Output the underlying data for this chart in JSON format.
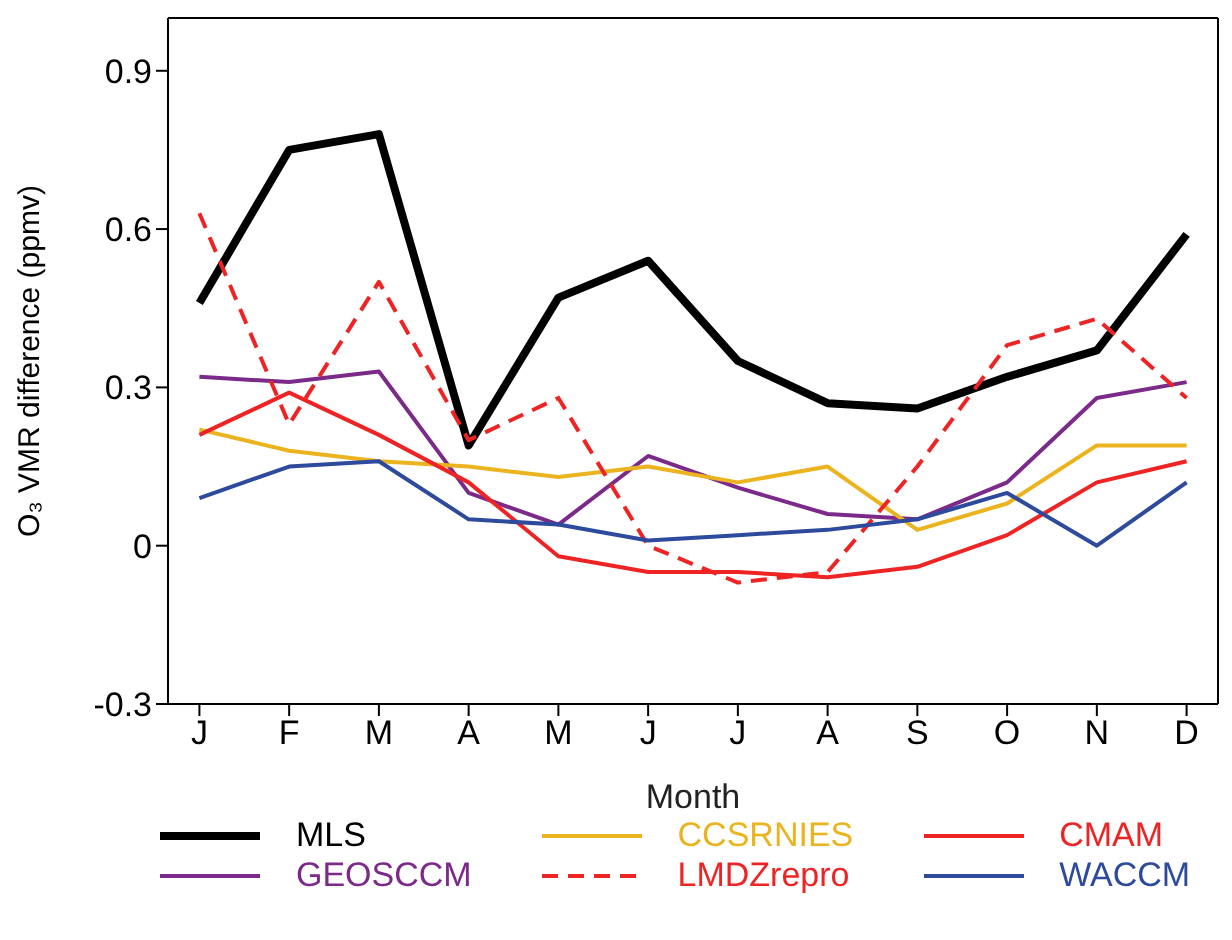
{
  "chart_data": {
    "type": "line",
    "xlabel": "Month",
    "ylabel": "O₃ VMR difference (ppmv)",
    "categories": [
      "J",
      "F",
      "M",
      "A",
      "M",
      "J",
      "J",
      "A",
      "S",
      "O",
      "N",
      "D"
    ],
    "ylim": [
      -0.3,
      1.0
    ],
    "yticks": [
      -0.3,
      0,
      0.3,
      0.6,
      0.9
    ],
    "grid": false,
    "legend": "bottom",
    "marker": "none",
    "series": [
      {
        "name": "MLS",
        "color": "#000000",
        "values": [
          0.46,
          0.75,
          0.78,
          0.19,
          0.47,
          0.54,
          0.35,
          0.27,
          0.26,
          0.32,
          0.37,
          0.59
        ]
      },
      {
        "name": "GEOSCCM",
        "color": "#7b2a8a",
        "values": [
          0.32,
          0.31,
          0.33,
          0.1,
          0.04,
          0.17,
          0.11,
          0.06,
          0.05,
          0.12,
          0.28,
          0.31
        ]
      },
      {
        "name": "CCSRNIES",
        "color": "#ebb31e",
        "values": [
          0.22,
          0.18,
          0.16,
          0.15,
          0.13,
          0.15,
          0.12,
          0.15,
          0.03,
          0.08,
          0.19,
          0.19
        ]
      },
      {
        "name": "LMDZrepro",
        "color": "#ee2424",
        "line_style": "dashed",
        "values": [
          0.63,
          0.23,
          0.5,
          0.2,
          0.28,
          0.0,
          -0.07,
          -0.05,
          0.15,
          0.38,
          0.43,
          0.28
        ]
      },
      {
        "name": "CMAM",
        "color": "#ee2424",
        "values": [
          0.21,
          0.29,
          0.21,
          0.12,
          -0.02,
          -0.05,
          -0.05,
          -0.06,
          -0.04,
          0.02,
          0.12,
          0.16
        ]
      },
      {
        "name": "WACCM",
        "color": "#2d4a9c",
        "values": [
          0.09,
          0.15,
          0.16,
          0.05,
          0.04,
          0.01,
          0.02,
          0.03,
          0.05,
          0.1,
          0.0,
          0.12
        ]
      }
    ]
  }
}
